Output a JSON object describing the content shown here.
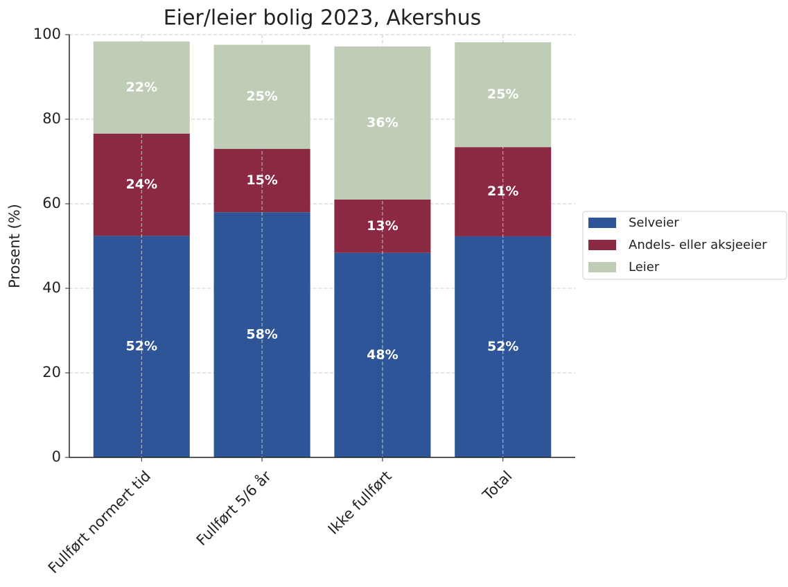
{
  "chart_data": {
    "type": "stacked_bar",
    "title": "Eier/leier bolig 2023, Akershus",
    "y_label": "Prosent (%)",
    "categories": [
      "Fullført normert tid",
      "Fullført 5/6 år",
      "Ikke fullført",
      "Total"
    ],
    "series": [
      {
        "name": "Selveier",
        "color": "#2e5597",
        "values": [
          52.4,
          58.0,
          48.4,
          52.3
        ],
        "value_labels": [
          "52%",
          "58%",
          "48%",
          "52%"
        ]
      },
      {
        "name": "Andels- eller aksjeeier",
        "color": "#8b2942",
        "values": [
          24.2,
          15.0,
          12.6,
          21.1
        ],
        "value_labels": [
          "24%",
          "15%",
          "13%",
          "21%"
        ]
      },
      {
        "name": "Leier",
        "color": "#bfcdb6",
        "values": [
          21.8,
          24.6,
          36.2,
          24.8
        ],
        "value_labels": [
          "22%",
          "25%",
          "36%",
          "25%"
        ]
      }
    ],
    "ylim": [
      0,
      100
    ],
    "yticks": [
      0,
      20,
      40,
      60,
      80,
      100
    ],
    "grid": true,
    "legend": "right"
  }
}
